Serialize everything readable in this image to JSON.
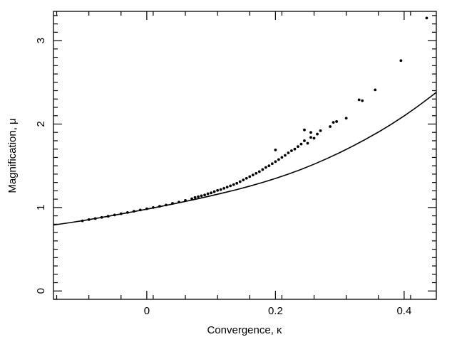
{
  "chart_data": {
    "type": "scatter",
    "xlabel": "Convergence, κ",
    "ylabel": "Magnification, μ",
    "xlim": [
      -0.145,
      0.45
    ],
    "ylim": [
      -0.1,
      3.35
    ],
    "xticks": [
      0,
      0.2,
      0.4
    ],
    "xtick_labels": [
      "0",
      "0.2",
      "0.4"
    ],
    "yticks": [
      0,
      1,
      2,
      3
    ],
    "ytick_labels": [
      "0",
      "1",
      "2",
      "3"
    ],
    "grid": false,
    "series": [
      {
        "type": "line",
        "x": [
          -0.145,
          -0.12,
          -0.1,
          -0.08,
          -0.06,
          -0.04,
          -0.02,
          0.0,
          0.02,
          0.04,
          0.06,
          0.08,
          0.1,
          0.12,
          0.14,
          0.16,
          0.18,
          0.2,
          0.22,
          0.24,
          0.26,
          0.28,
          0.3,
          0.32,
          0.34,
          0.36,
          0.38,
          0.4,
          0.42,
          0.44,
          0.45
        ],
        "y": [
          0.79,
          0.818,
          0.842,
          0.868,
          0.895,
          0.923,
          0.951,
          0.98,
          1.01,
          1.041,
          1.073,
          1.106,
          1.141,
          1.177,
          1.215,
          1.256,
          1.3,
          1.348,
          1.4,
          1.457,
          1.519,
          1.586,
          1.658,
          1.735,
          1.817,
          1.904,
          1.997,
          2.097,
          2.205,
          2.32,
          2.38
        ]
      },
      {
        "type": "scatter",
        "points": [
          [
            -0.1,
            0.84
          ],
          [
            -0.09,
            0.855
          ],
          [
            -0.08,
            0.868
          ],
          [
            -0.07,
            0.882
          ],
          [
            -0.06,
            0.895
          ],
          [
            -0.05,
            0.91
          ],
          [
            -0.04,
            0.925
          ],
          [
            -0.03,
            0.94
          ],
          [
            -0.02,
            0.955
          ],
          [
            -0.01,
            0.97
          ],
          [
            0.0,
            0.985
          ],
          [
            0.01,
            1.0
          ],
          [
            0.02,
            1.015
          ],
          [
            0.03,
            1.03
          ],
          [
            0.04,
            1.05
          ],
          [
            0.05,
            1.065
          ],
          [
            0.06,
            1.085
          ],
          [
            0.07,
            1.105
          ],
          [
            0.075,
            1.12
          ],
          [
            0.08,
            1.13
          ],
          [
            0.085,
            1.14
          ],
          [
            0.09,
            1.15
          ],
          [
            0.095,
            1.165
          ],
          [
            0.1,
            1.175
          ],
          [
            0.105,
            1.19
          ],
          [
            0.11,
            1.205
          ],
          [
            0.115,
            1.215
          ],
          [
            0.12,
            1.23
          ],
          [
            0.125,
            1.245
          ],
          [
            0.13,
            1.26
          ],
          [
            0.135,
            1.275
          ],
          [
            0.14,
            1.29
          ],
          [
            0.145,
            1.31
          ],
          [
            0.15,
            1.33
          ],
          [
            0.155,
            1.35
          ],
          [
            0.16,
            1.37
          ],
          [
            0.165,
            1.39
          ],
          [
            0.17,
            1.41
          ],
          [
            0.175,
            1.43
          ],
          [
            0.18,
            1.455
          ],
          [
            0.185,
            1.48
          ],
          [
            0.19,
            1.5
          ],
          [
            0.195,
            1.525
          ],
          [
            0.2,
            1.55
          ],
          [
            0.205,
            1.575
          ],
          [
            0.21,
            1.6
          ],
          [
            0.215,
            1.625
          ],
          [
            0.22,
            1.655
          ],
          [
            0.225,
            1.68
          ],
          [
            0.23,
            1.7
          ],
          [
            0.235,
            1.73
          ],
          [
            0.24,
            1.76
          ],
          [
            0.2,
            1.69
          ],
          [
            0.245,
            1.8
          ],
          [
            0.25,
            1.77
          ],
          [
            0.255,
            1.84
          ],
          [
            0.26,
            1.83
          ],
          [
            0.265,
            1.88
          ],
          [
            0.27,
            1.92
          ],
          [
            0.245,
            1.93
          ],
          [
            0.255,
            1.9
          ],
          [
            0.285,
            1.97
          ],
          [
            0.29,
            2.02
          ],
          [
            0.295,
            2.03
          ],
          [
            0.31,
            2.07
          ],
          [
            0.33,
            2.29
          ],
          [
            0.335,
            2.28
          ],
          [
            0.355,
            2.41
          ],
          [
            0.395,
            2.76
          ],
          [
            0.435,
            3.27
          ]
        ]
      }
    ]
  }
}
